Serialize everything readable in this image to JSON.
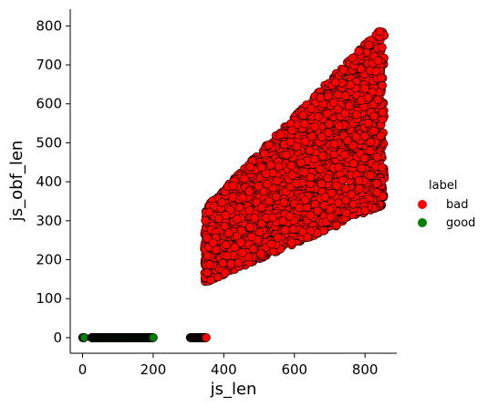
{
  "chart_data": {
    "type": "scatter",
    "xlabel": "js_len",
    "ylabel": "js_obf_len",
    "xlim": [
      -35,
      890
    ],
    "ylim": [
      -40,
      843
    ],
    "x_ticks": [
      0,
      200,
      400,
      600,
      800
    ],
    "y_ticks": [
      0,
      100,
      200,
      300,
      400,
      500,
      600,
      700,
      800
    ],
    "grid": false,
    "legend": {
      "title": "label",
      "placement": "right",
      "entries": [
        {
          "name": "bad",
          "color": "#ff0000"
        },
        {
          "name": "good",
          "color": "#008000"
        }
      ]
    },
    "series": [
      {
        "name": "bad",
        "color": "#ff0000",
        "regions": [
          {
            "shape": "parallelogram",
            "x_range": [
              345,
              855
            ],
            "y_lower_at_xmin": 140,
            "y_lower_at_xmax": 340,
            "y_upper_at_xmin": 330,
            "y_upper_at_xmax": 805,
            "approx_points": 3200
          },
          {
            "shape": "segment",
            "x_range": [
              305,
              350
            ],
            "y": 0,
            "approx_points": 45
          }
        ]
      },
      {
        "name": "good",
        "color": "#008000",
        "regions": [
          {
            "shape": "segment",
            "x_range": [
              0,
              5
            ],
            "y": 0,
            "approx_points": 6
          },
          {
            "shape": "segment",
            "x_range": [
              25,
              200
            ],
            "y": 0,
            "approx_points": 160
          }
        ]
      }
    ]
  }
}
